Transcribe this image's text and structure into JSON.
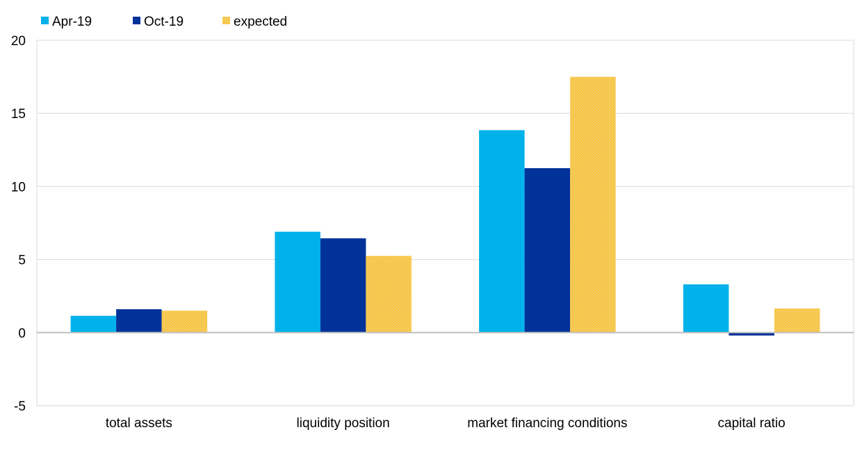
{
  "chart_data": {
    "type": "bar",
    "title": "",
    "xlabel": "",
    "ylabel": "",
    "categories": [
      "total assets",
      "liquidity position",
      "market financing conditions",
      "capital ratio"
    ],
    "series": [
      {
        "name": "Apr-19",
        "color": "#00b1ea",
        "pattern": "solid",
        "values": [
          1.15,
          6.9,
          13.85,
          3.3
        ]
      },
      {
        "name": "Oct-19",
        "color": "#003299",
        "pattern": "solid",
        "values": [
          1.6,
          6.45,
          11.25,
          -0.2
        ]
      },
      {
        "name": "expected",
        "color": "#f6c445",
        "pattern": "dotted",
        "values": [
          1.5,
          5.25,
          17.5,
          1.65
        ]
      }
    ],
    "ylim": [
      -5,
      20
    ],
    "yticks": [
      -5,
      0,
      5,
      10,
      15,
      20
    ],
    "grid": true,
    "legend_position": "top-left"
  }
}
